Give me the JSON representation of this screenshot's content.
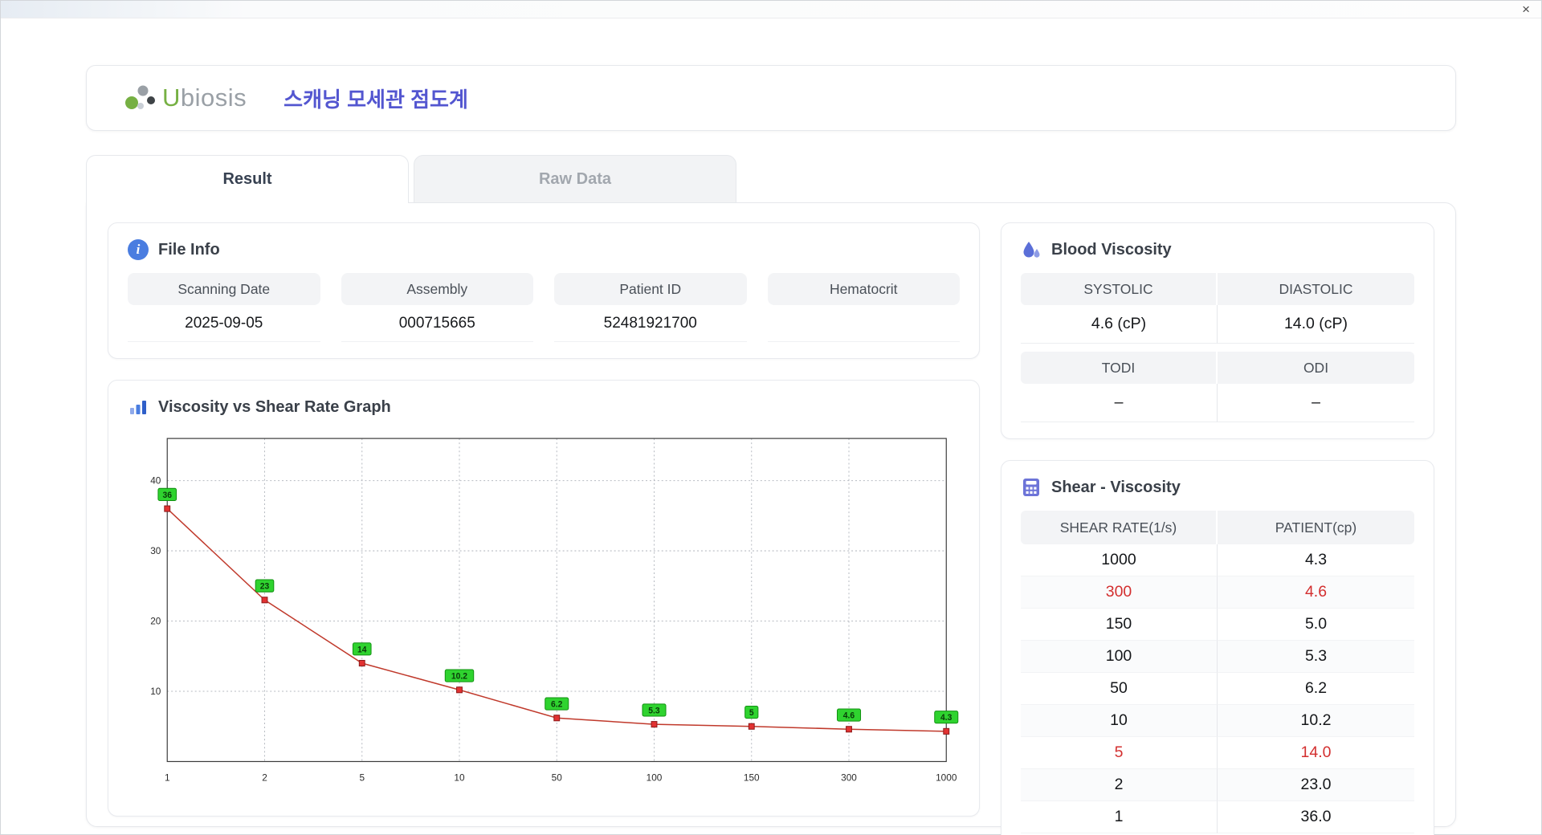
{
  "window": {
    "close_label": "×"
  },
  "header": {
    "logo_text_u": "U",
    "logo_text_rest": "biosis",
    "app_title": "스캐닝 모세관 점도계"
  },
  "tabs": {
    "result": "Result",
    "raw_data": "Raw Data"
  },
  "file_info": {
    "title": "File Info",
    "fields": [
      {
        "label": "Scanning Date",
        "value": "2025-09-05"
      },
      {
        "label": "Assembly",
        "value": "000715665"
      },
      {
        "label": "Patient ID",
        "value": "52481921700"
      },
      {
        "label": "Hematocrit",
        "value": ""
      }
    ]
  },
  "graph": {
    "title": "Viscosity vs Shear Rate Graph"
  },
  "chart_data": {
    "type": "line",
    "title": "Viscosity vs Shear Rate Graph",
    "x": [
      "1",
      "2",
      "5",
      "10",
      "50",
      "100",
      "150",
      "300",
      "1000"
    ],
    "values": [
      36,
      23,
      14,
      10.2,
      6.2,
      5.3,
      5.0,
      4.6,
      4.3
    ],
    "point_labels": [
      "36",
      "23",
      "14",
      "10.2",
      "6.2",
      "5.3",
      "5",
      "4.6",
      "4.3"
    ],
    "y_ticks": [
      10,
      20,
      30,
      40
    ],
    "ylim": [
      0,
      46
    ],
    "x_scale": "categorical-log-labels",
    "grid": true,
    "legend": "none",
    "line_color": "#c0392b",
    "marker_color": "#e23232",
    "label_bg_color": "#2fd32f"
  },
  "blood_viscosity": {
    "title": "Blood Viscosity",
    "systolic": {
      "label": "SYSTOLIC",
      "value": "4.6 (cP)"
    },
    "diastolic": {
      "label": "DIASTOLIC",
      "value": "14.0 (cP)"
    },
    "todi": {
      "label": "TODI",
      "value": "–"
    },
    "odi": {
      "label": "ODI",
      "value": "–"
    }
  },
  "shear_viscosity": {
    "title": "Shear - Viscosity",
    "columns": [
      "SHEAR RATE(1/s)",
      "PATIENT(cp)"
    ],
    "highlight_color": "#d32f2f",
    "rows": [
      {
        "shear": "1000",
        "patient": "4.3",
        "highlight": false
      },
      {
        "shear": "300",
        "patient": "4.6",
        "highlight": true
      },
      {
        "shear": "150",
        "patient": "5.0",
        "highlight": false
      },
      {
        "shear": "100",
        "patient": "5.3",
        "highlight": false
      },
      {
        "shear": "50",
        "patient": "6.2",
        "highlight": false
      },
      {
        "shear": "10",
        "patient": "10.2",
        "highlight": false
      },
      {
        "shear": "5",
        "patient": "14.0",
        "highlight": true
      },
      {
        "shear": "2",
        "patient": "23.0",
        "highlight": false
      },
      {
        "shear": "1",
        "patient": "36.0",
        "highlight": false
      }
    ]
  }
}
